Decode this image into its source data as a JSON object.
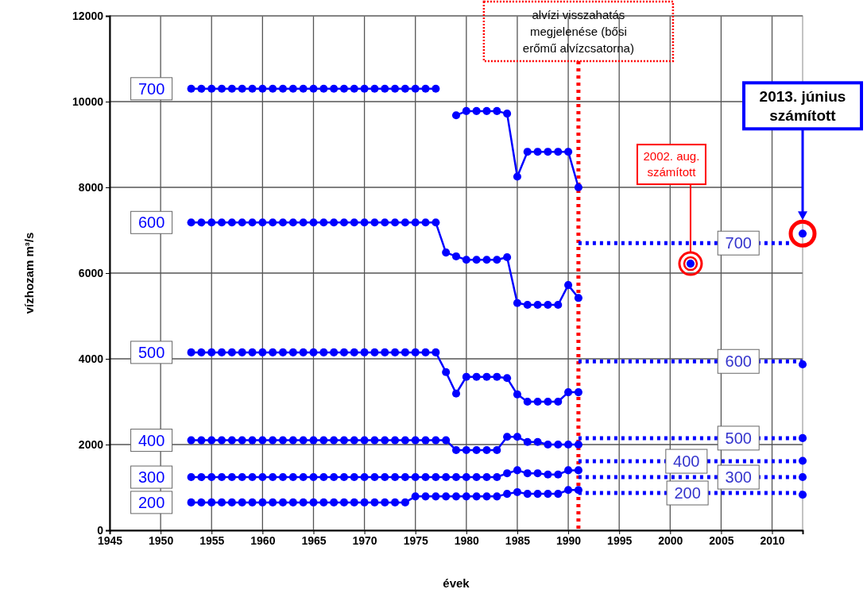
{
  "chart_data": {
    "type": "line",
    "xlabel": "évek",
    "ylabel": "vízhozam m³/s",
    "xlim": [
      1945,
      2013
    ],
    "xticks": [
      1945,
      1950,
      1955,
      1960,
      1965,
      1970,
      1975,
      1980,
      1985,
      1990,
      1995,
      2000,
      2005,
      2010
    ],
    "ylim": [
      0,
      12000
    ],
    "yticks": [
      0,
      2000,
      4000,
      6000,
      8000,
      10000,
      12000
    ],
    "grid": true,
    "marker": "circle",
    "x": [
      1953,
      1954,
      1955,
      1956,
      1957,
      1958,
      1959,
      1960,
      1961,
      1962,
      1963,
      1964,
      1965,
      1966,
      1967,
      1968,
      1969,
      1970,
      1971,
      1972,
      1973,
      1974,
      1975,
      1976,
      1977,
      1978,
      1979,
      1980,
      1981,
      1982,
      1983,
      1984,
      1985,
      1986,
      1987,
      1988,
      1989,
      1990,
      1991
    ],
    "series": [
      {
        "name": "700",
        "color": "#0000ff",
        "values": [
          10300,
          10300,
          10300,
          10300,
          10300,
          10300,
          10300,
          10300,
          10300,
          10300,
          10300,
          10300,
          10300,
          10300,
          10300,
          10300,
          10300,
          10300,
          10300,
          10300,
          10300,
          10300,
          10300,
          10300,
          10300,
          null,
          9680,
          9780,
          9780,
          9780,
          9780,
          9720,
          8250,
          8830,
          8830,
          8830,
          8830,
          8830,
          8000
        ]
      },
      {
        "name": "600",
        "color": "#0000ff",
        "values": [
          7180,
          7180,
          7180,
          7180,
          7180,
          7180,
          7180,
          7180,
          7180,
          7180,
          7180,
          7180,
          7180,
          7180,
          7180,
          7180,
          7180,
          7180,
          7180,
          7180,
          7180,
          7180,
          7180,
          7180,
          7180,
          6480,
          6390,
          6310,
          6310,
          6310,
          6310,
          6370,
          5300,
          5260,
          5260,
          5260,
          5260,
          5720,
          5420
        ]
      },
      {
        "name": "500",
        "color": "#0000ff",
        "values": [
          4150,
          4150,
          4150,
          4150,
          4150,
          4150,
          4150,
          4150,
          4150,
          4150,
          4150,
          4150,
          4150,
          4150,
          4150,
          4150,
          4150,
          4150,
          4150,
          4150,
          4150,
          4150,
          4150,
          4150,
          4150,
          3690,
          3190,
          3580,
          3580,
          3580,
          3580,
          3550,
          3170,
          3000,
          3000,
          3000,
          3000,
          3220,
          3220
        ]
      },
      {
        "name": "400",
        "color": "#0000ff",
        "values": [
          2100,
          2100,
          2100,
          2100,
          2100,
          2100,
          2100,
          2100,
          2100,
          2100,
          2100,
          2100,
          2100,
          2100,
          2100,
          2100,
          2100,
          2100,
          2100,
          2100,
          2100,
          2100,
          2100,
          2100,
          2100,
          2100,
          1870,
          1870,
          1870,
          1870,
          1870,
          2180,
          2180,
          2060,
          2060,
          2000,
          2000,
          2000,
          2000
        ]
      },
      {
        "name": "300",
        "color": "#0000ff",
        "values": [
          1240,
          1240,
          1240,
          1240,
          1240,
          1240,
          1240,
          1240,
          1240,
          1240,
          1240,
          1240,
          1240,
          1240,
          1240,
          1240,
          1240,
          1240,
          1240,
          1240,
          1240,
          1240,
          1240,
          1240,
          1240,
          1240,
          1240,
          1240,
          1240,
          1240,
          1240,
          1330,
          1400,
          1330,
          1330,
          1300,
          1300,
          1400,
          1400
        ]
      },
      {
        "name": "200",
        "color": "#0000ff",
        "values": [
          650,
          650,
          650,
          650,
          650,
          650,
          650,
          650,
          650,
          650,
          650,
          650,
          650,
          650,
          650,
          650,
          650,
          650,
          650,
          650,
          650,
          650,
          790,
          790,
          790,
          790,
          790,
          790,
          790,
          790,
          790,
          850,
          890,
          850,
          850,
          850,
          850,
          940,
          940
        ]
      },
      {
        "type": "line",
        "marker": "none",
        "line_style": "dotted",
        "color": "#0000ff",
        "x": [
          1991,
          2012
        ],
        "values": [
          6700,
          6700
        ]
      },
      {
        "type": "line",
        "marker": "none",
        "line_style": "dotted",
        "color": "#0000ff",
        "x": [
          1991,
          2013
        ],
        "values": [
          3940,
          3940
        ]
      },
      {
        "type": "line",
        "marker": "none",
        "line_style": "dotted",
        "color": "#0000ff",
        "x": [
          1991,
          2013
        ],
        "values": [
          2150,
          2150
        ]
      },
      {
        "type": "line",
        "marker": "none",
        "line_style": "dotted",
        "color": "#0000ff",
        "x": [
          1991,
          2013
        ],
        "values": [
          1610,
          1610
        ]
      },
      {
        "type": "line",
        "marker": "none",
        "line_style": "dotted",
        "color": "#0000ff",
        "x": [
          1991,
          2013
        ],
        "values": [
          1240,
          1240
        ]
      },
      {
        "type": "line",
        "marker": "none",
        "line_style": "dotted",
        "color": "#0000ff",
        "x": [
          1991,
          2013
        ],
        "values": [
          870,
          870
        ]
      },
      {
        "type": "scatter",
        "color": "#0000ff",
        "x": [
          2002,
          2013,
          2013,
          2013,
          2013,
          2013,
          2013
        ],
        "values": [
          6220,
          6920,
          3870,
          2150,
          1620,
          1240,
          830
        ]
      }
    ],
    "ref_lines": [
      {
        "axis": "x",
        "value": 1991,
        "label": "alvízi visszahatás megjelenése (bősi erőmű alvízcsatorna)",
        "color": "#ff0000",
        "line_style": "dotted"
      }
    ],
    "annotations": [
      "2002. aug. számított",
      "2013. június számított",
      {
        "text": "700",
        "x": 2006.7,
        "y": 6700
      },
      {
        "text": "600",
        "x": 2006.7,
        "y": 3940
      },
      {
        "text": "500",
        "x": 2006.7,
        "y": 2150
      },
      {
        "text": "400",
        "x": 2001.6,
        "y": 1610
      },
      {
        "text": "300",
        "x": 2006.7,
        "y": 1240
      },
      {
        "text": "200",
        "x": 2001.7,
        "y": 870
      }
    ]
  }
}
